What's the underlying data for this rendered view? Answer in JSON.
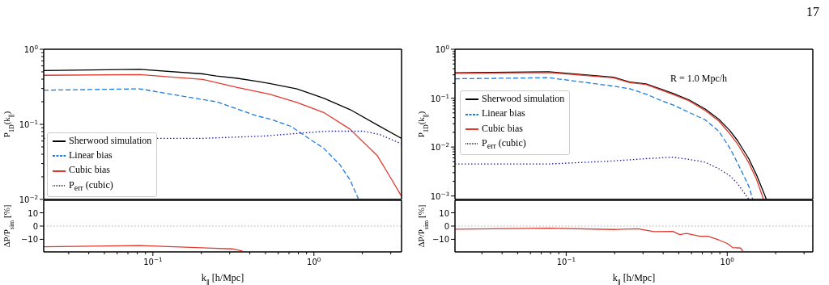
{
  "chart_data": [
    {
      "type": "line",
      "ylabel": "P$_{1D}$(k$_{∥}$)",
      "log": "xy",
      "xlim": [
        0.021,
        3.5
      ],
      "ylim": [
        0.01,
        1
      ],
      "tick_labels": "y",
      "legend": "bottom left",
      "annotations": [
        "17"
      ],
      "yticks": [
        {
          "value": 0.01,
          "label": "10$^{−2}$"
        },
        {
          "value": 0.02,
          "label": null
        },
        {
          "value": 0.03,
          "label": null
        },
        {
          "value": 0.04,
          "label": null
        },
        {
          "value": 0.05,
          "label": null
        },
        {
          "value": 0.06,
          "label": null
        },
        {
          "value": 0.07,
          "label": null
        },
        {
          "value": 0.08,
          "label": null
        },
        {
          "value": 0.09,
          "label": null
        },
        {
          "value": 0.1,
          "label": "10$^{−1}$"
        },
        {
          "value": 0.2,
          "label": null
        },
        {
          "value": 0.3,
          "label": null
        },
        {
          "value": 0.4,
          "label": null
        },
        {
          "value": 0.5,
          "label": null
        },
        {
          "value": 0.6,
          "label": null
        },
        {
          "value": 0.7,
          "label": null
        },
        {
          "value": 0.8,
          "label": null
        },
        {
          "value": 0.9,
          "label": null
        },
        {
          "value": 1,
          "label": "10$^{0}$"
        }
      ],
      "series": [
        {
          "name": "Sherwood simulation",
          "color": "#000000",
          "line_style": "solid",
          "x": [
            0.021,
            0.083,
            0.204,
            0.248,
            0.335,
            0.44,
            0.53,
            0.785,
            1.15,
            1.68,
            2.48,
            3.5
          ],
          "values": [
            0.52,
            0.54,
            0.47,
            0.44,
            0.41,
            0.374,
            0.35,
            0.297,
            0.223,
            0.157,
            0.098,
            0.065
          ]
        },
        {
          "name": "Linear bias",
          "color": "#1f7ae0",
          "line_style": "dashed",
          "x": [
            0.021,
            0.083,
            0.204,
            0.248,
            0.335,
            0.44,
            0.53,
            0.72,
            0.91,
            1.15,
            1.45,
            1.68,
            1.89
          ],
          "values": [
            0.285,
            0.297,
            0.214,
            0.2,
            0.16,
            0.13,
            0.118,
            0.094,
            0.067,
            0.048,
            0.029,
            0.018,
            0.0101
          ]
        },
        {
          "name": "Cubic bias",
          "color": "#e03a2f",
          "line_style": "solid",
          "x": [
            0.021,
            0.083,
            0.204,
            0.335,
            0.53,
            0.785,
            1.15,
            1.68,
            2.48,
            2.99,
            3.5
          ],
          "values": [
            0.45,
            0.46,
            0.397,
            0.31,
            0.252,
            0.196,
            0.144,
            0.086,
            0.038,
            0.0195,
            0.011
          ]
        },
        {
          "name": "P$_{err}$ (cubic)",
          "color": "#1c1c8a",
          "line_style": "dotted",
          "x": [
            0.021,
            0.2,
            0.5,
            0.8,
            1.2,
            2.04,
            2.57,
            3.5
          ],
          "values": [
            0.065,
            0.065,
            0.07,
            0.076,
            0.081,
            0.081,
            0.073,
            0.055
          ]
        }
      ]
    },
    {
      "type": "line",
      "ylabel": "ΔP/P$_{sim}$ [%]",
      "xlabel": "k$_{∥}$ [h/Mpc]",
      "log": "x",
      "xlim": [
        0.021,
        3.5
      ],
      "ylim": [
        -19.5,
        19.5
      ],
      "xticks": [
        {
          "value": 0.03,
          "label": null
        },
        {
          "value": 0.04,
          "label": null
        },
        {
          "value": 0.05,
          "label": null
        },
        {
          "value": 0.06,
          "label": null
        },
        {
          "value": 0.07,
          "label": null
        },
        {
          "value": 0.08,
          "label": null
        },
        {
          "value": 0.09,
          "label": null
        },
        {
          "value": 0.1,
          "label": "10$^{−1}$"
        },
        {
          "value": 0.2,
          "label": null
        },
        {
          "value": 0.3,
          "label": null
        },
        {
          "value": 0.4,
          "label": null
        },
        {
          "value": 0.5,
          "label": null
        },
        {
          "value": 0.6,
          "label": null
        },
        {
          "value": 0.7,
          "label": null
        },
        {
          "value": 0.8,
          "label": null
        },
        {
          "value": 0.9,
          "label": null
        },
        {
          "value": 1,
          "label": "10$^{0}$"
        },
        {
          "value": 2,
          "label": null
        },
        {
          "value": 3,
          "label": null
        }
      ],
      "yticks": [
        {
          "value": -10,
          "label": "−10"
        },
        {
          "value": 0,
          "label": "0"
        },
        {
          "value": 10,
          "label": "10"
        }
      ],
      "ref_lines": [
        {
          "axis": "y",
          "value": 0,
          "color": "#999999",
          "line_style": "dotted"
        }
      ],
      "series": [
        {
          "color": "#e03a2f",
          "line_style": "solid",
          "x": [
            0.021,
            0.083,
            0.31,
            0.36
          ],
          "values": [
            -15.6,
            -14.7,
            -17.2,
            -18.8
          ]
        }
      ]
    },
    {
      "type": "line",
      "ylabel": "P$_{1D}$(k$_{∥}$)",
      "log": "xy",
      "xlim": [
        0.0204,
        3.4
      ],
      "ylim": [
        0.00085,
        1
      ],
      "tick_labels": "y",
      "legend": "left",
      "annotations": [
        "R = 1.0 Mpc/h"
      ],
      "yticks": [
        {
          "value": 0.001,
          "label": "10$^{−3}$"
        },
        {
          "value": 0.002,
          "label": null
        },
        {
          "value": 0.003,
          "label": null
        },
        {
          "value": 0.004,
          "label": null
        },
        {
          "value": 0.005,
          "label": null
        },
        {
          "value": 0.006,
          "label": null
        },
        {
          "value": 0.007,
          "label": null
        },
        {
          "value": 0.008,
          "label": null
        },
        {
          "value": 0.009,
          "label": null
        },
        {
          "value": 0.01,
          "label": "10$^{−2}$"
        },
        {
          "value": 0.02,
          "label": null
        },
        {
          "value": 0.03,
          "label": null
        },
        {
          "value": 0.04,
          "label": null
        },
        {
          "value": 0.05,
          "label": null
        },
        {
          "value": 0.06,
          "label": null
        },
        {
          "value": 0.07,
          "label": null
        },
        {
          "value": 0.08,
          "label": null
        },
        {
          "value": 0.09,
          "label": null
        },
        {
          "value": 0.1,
          "label": "10$^{−1}$"
        },
        {
          "value": 0.2,
          "label": null
        },
        {
          "value": 0.3,
          "label": null
        },
        {
          "value": 0.4,
          "label": null
        },
        {
          "value": 0.5,
          "label": null
        },
        {
          "value": 0.6,
          "label": null
        },
        {
          "value": 0.7,
          "label": null
        },
        {
          "value": 0.8,
          "label": null
        },
        {
          "value": 0.9,
          "label": null
        },
        {
          "value": 1,
          "label": "10$^{0}$"
        }
      ],
      "series": [
        {
          "name": "Sherwood simulation",
          "color": "#000000",
          "line_style": "solid",
          "x": [
            0.0204,
            0.078,
            0.197,
            0.248,
            0.313,
            0.394,
            0.46,
            0.58,
            0.73,
            0.887,
            1.035,
            1.16,
            1.36,
            1.52,
            1.75
          ],
          "values": [
            0.33,
            0.345,
            0.268,
            0.213,
            0.196,
            0.15,
            0.125,
            0.092,
            0.06,
            0.037,
            0.022,
            0.0135,
            0.0058,
            0.0027,
            0.00086
          ]
        },
        {
          "name": "Linear bias",
          "color": "#1f7ae0",
          "line_style": "dashed",
          "x": [
            0.0204,
            0.078,
            0.197,
            0.248,
            0.313,
            0.394,
            0.46,
            0.58,
            0.73,
            0.887,
            1.035,
            1.16,
            1.36,
            1.44
          ],
          "values": [
            0.249,
            0.262,
            0.176,
            0.156,
            0.121,
            0.088,
            0.073,
            0.051,
            0.036,
            0.021,
            0.0097,
            0.0047,
            0.0016,
            0.00086
          ]
        },
        {
          "name": "Cubic bias",
          "color": "#e03a2f",
          "line_style": "solid",
          "x": [
            0.0204,
            0.078,
            0.197,
            0.248,
            0.313,
            0.394,
            0.46,
            0.58,
            0.73,
            0.887,
            1.035,
            1.16,
            1.36,
            1.52,
            1.68
          ],
          "values": [
            0.32,
            0.335,
            0.26,
            0.207,
            0.19,
            0.145,
            0.12,
            0.088,
            0.056,
            0.034,
            0.019,
            0.0115,
            0.0048,
            0.0022,
            0.00086
          ]
        },
        {
          "name": "P$_{err}$ (cubic)",
          "color": "#1c1c8a",
          "line_style": "dotted",
          "x": [
            0.0204,
            0.078,
            0.197,
            0.313,
            0.46,
            0.58,
            0.73,
            0.887,
            1.035,
            1.16,
            1.36
          ],
          "values": [
            0.0045,
            0.0045,
            0.0052,
            0.0058,
            0.0062,
            0.0056,
            0.0049,
            0.0036,
            0.0026,
            0.0018,
            0.00086
          ]
        }
      ]
    },
    {
      "type": "line",
      "ylabel": "ΔP/P$_{sim}$ [%]",
      "xlabel": "k$_{∥}$ [h/Mpc]",
      "log": "x",
      "xlim": [
        0.0204,
        3.4
      ],
      "ylim": [
        -19.5,
        19.5
      ],
      "xticks": [
        {
          "value": 0.03,
          "label": null
        },
        {
          "value": 0.04,
          "label": null
        },
        {
          "value": 0.05,
          "label": null
        },
        {
          "value": 0.06,
          "label": null
        },
        {
          "value": 0.07,
          "label": null
        },
        {
          "value": 0.08,
          "label": null
        },
        {
          "value": 0.09,
          "label": null
        },
        {
          "value": 0.1,
          "label": "10$^{−1}$"
        },
        {
          "value": 0.2,
          "label": null
        },
        {
          "value": 0.3,
          "label": null
        },
        {
          "value": 0.4,
          "label": null
        },
        {
          "value": 0.5,
          "label": null
        },
        {
          "value": 0.6,
          "label": null
        },
        {
          "value": 0.7,
          "label": null
        },
        {
          "value": 0.8,
          "label": null
        },
        {
          "value": 0.9,
          "label": null
        },
        {
          "value": 1,
          "label": "10$^{0}$"
        },
        {
          "value": 2,
          "label": null
        },
        {
          "value": 3,
          "label": null
        }
      ],
      "yticks": [
        {
          "value": -10,
          "label": "−10"
        },
        {
          "value": 0,
          "label": "0"
        },
        {
          "value": 10,
          "label": "10"
        }
      ],
      "ref_lines": [
        {
          "axis": "y",
          "value": 0,
          "color": "#999999",
          "line_style": "dotted"
        }
      ],
      "series": [
        {
          "color": "#e03a2f",
          "line_style": "solid",
          "x": [
            0.0204,
            0.078,
            0.197,
            0.279,
            0.351,
            0.46,
            0.507,
            0.558,
            0.677,
            0.76,
            0.887,
            1.0,
            1.08,
            1.21,
            1.25
          ],
          "values": [
            -2.4,
            -1.6,
            -2.6,
            -2,
            -4.2,
            -4,
            -6.5,
            -5.5,
            -7.7,
            -7.7,
            -10.5,
            -13.1,
            -16.2,
            -16.6,
            -18.8
          ]
        }
      ]
    }
  ]
}
